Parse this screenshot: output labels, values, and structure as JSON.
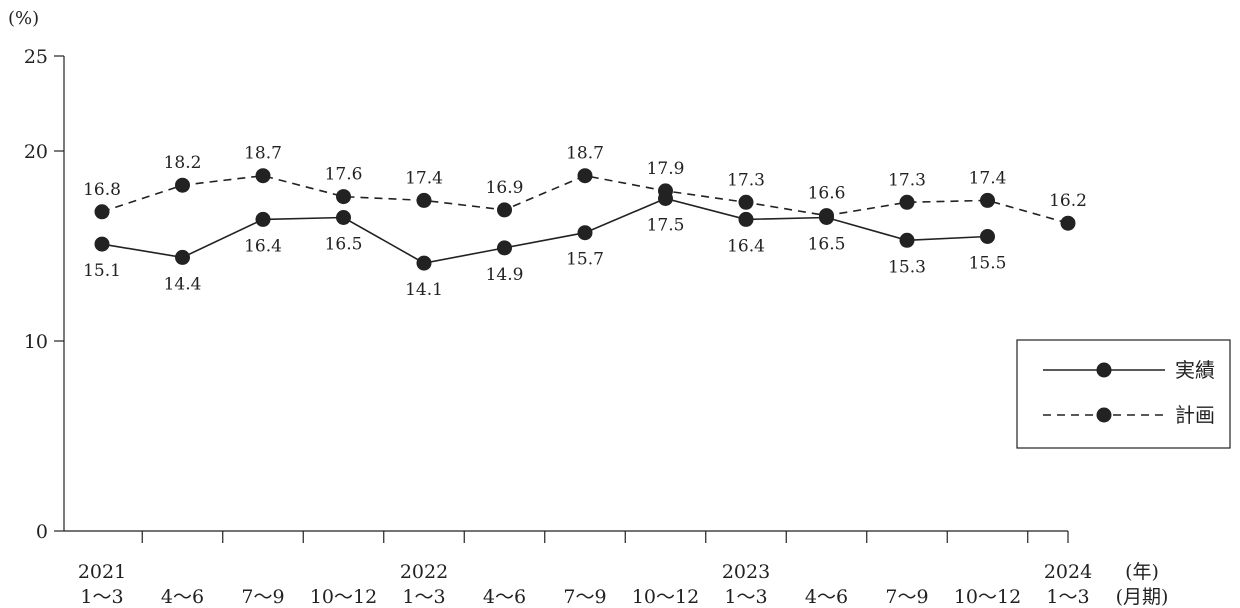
{
  "chart_data": {
    "type": "line",
    "y_unit": "(%)",
    "ylim": [
      0,
      25
    ],
    "yticks": [
      0,
      10,
      20,
      25
    ],
    "grid": false,
    "legend_position": "right",
    "x_year_unit": "(年)",
    "x_period_unit": "(月期)",
    "categories": [
      {
        "year": "2021",
        "period": "1〜3"
      },
      {
        "year": "",
        "period": "4〜6"
      },
      {
        "year": "",
        "period": "7〜9"
      },
      {
        "year": "",
        "period": "10〜12"
      },
      {
        "year": "2022",
        "period": "1〜3"
      },
      {
        "year": "",
        "period": "4〜6"
      },
      {
        "year": "",
        "period": "7〜9"
      },
      {
        "year": "",
        "period": "10〜12"
      },
      {
        "year": "2023",
        "period": "1〜3"
      },
      {
        "year": "",
        "period": "4〜6"
      },
      {
        "year": "",
        "period": "7〜9"
      },
      {
        "year": "",
        "period": "10〜12"
      },
      {
        "year": "2024",
        "period": "1〜3"
      }
    ],
    "series": [
      {
        "name": "実績",
        "style": "solid",
        "color": "#222222",
        "values": [
          15.1,
          14.4,
          16.4,
          16.5,
          14.1,
          14.9,
          15.7,
          17.5,
          16.4,
          16.5,
          15.3,
          15.5,
          null
        ],
        "label_position": "below"
      },
      {
        "name": "計画",
        "style": "dashed",
        "color": "#222222",
        "values": [
          16.8,
          18.2,
          18.7,
          17.6,
          17.4,
          16.9,
          18.7,
          17.9,
          17.3,
          16.6,
          17.3,
          17.4,
          16.2
        ],
        "label_position": "above"
      }
    ]
  }
}
